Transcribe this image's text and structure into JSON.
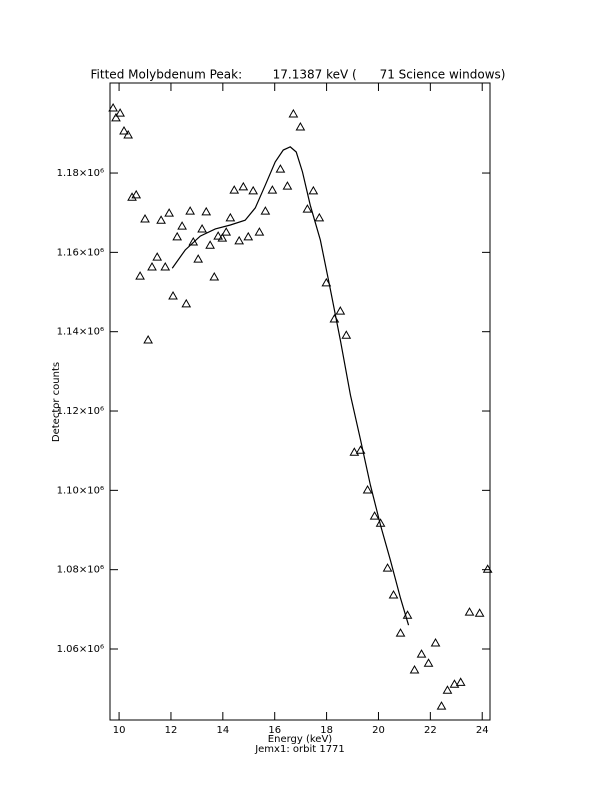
{
  "chart_data": {
    "type": "scatter",
    "title": "Fitted Molybdenum Peak:        17.1387 keV (      71 Science windows)",
    "xlabel": "Energy (keV)",
    "subtitle": "Jemx1: orbit 1771",
    "ylabel": "Detector counts",
    "color": "#000000",
    "xlim": [
      9.65,
      24.3
    ],
    "ylim": [
      1042100,
      1202700
    ],
    "xticks": [
      10,
      12,
      14,
      16,
      18,
      20,
      22,
      24
    ],
    "yticks": [
      {
        "value": 1060000,
        "label": "1.06×10⁶"
      },
      {
        "value": 1080000,
        "label": "1.08×10⁶"
      },
      {
        "value": 1100000,
        "label": "1.10×10⁶"
      },
      {
        "value": 1120000,
        "label": "1.12×10⁶"
      },
      {
        "value": 1140000,
        "label": "1.14×10⁶"
      },
      {
        "value": 1160000,
        "label": "1.16×10⁶"
      },
      {
        "value": 1180000,
        "label": "1.18×10⁶"
      }
    ],
    "series": [
      {
        "type": "scatter",
        "x": [
          9.77,
          9.88,
          10.04,
          10.19,
          10.35,
          10.5,
          10.66,
          10.81,
          11.0,
          11.12,
          11.27,
          11.47,
          11.62,
          11.78,
          11.93,
          12.08,
          12.24,
          12.43,
          12.59,
          12.74,
          12.86,
          13.05,
          13.2,
          13.36,
          13.51,
          13.67,
          13.82,
          13.98,
          14.13,
          14.29,
          14.44,
          14.63,
          14.79,
          14.98,
          15.17,
          15.41,
          15.64,
          15.91,
          16.22,
          16.49,
          16.72,
          16.99,
          17.26,
          17.49,
          17.72,
          17.99,
          18.3,
          18.53,
          18.76,
          19.07,
          19.31,
          19.58,
          19.85,
          20.08,
          20.35,
          20.58,
          20.85,
          21.12,
          21.39,
          21.66,
          21.93,
          22.2,
          22.43,
          22.66,
          22.93,
          23.17,
          23.51,
          23.9,
          24.21
        ],
        "values": [
          1196400,
          1193900,
          1195100,
          1190600,
          1189600,
          1173900,
          1174500,
          1154000,
          1168400,
          1137900,
          1156300,
          1158800,
          1168100,
          1156300,
          1169900,
          1149000,
          1163900,
          1166600,
          1147000,
          1170400,
          1162600,
          1158300,
          1165900,
          1170200,
          1161800,
          1153800,
          1164100,
          1163600,
          1165100,
          1168700,
          1175700,
          1162900,
          1176500,
          1163900,
          1175500,
          1165100,
          1170400,
          1175700,
          1181000,
          1176700,
          1194900,
          1191600,
          1170900,
          1175500,
          1168700,
          1152300,
          1143200,
          1145200,
          1139100,
          1109600,
          1110100,
          1100100,
          1093500,
          1091700,
          1080400,
          1073600,
          1064000,
          1068500,
          1054700,
          1058700,
          1056400,
          1061500,
          1045600,
          1049600,
          1051100,
          1051600,
          1069300,
          1069000,
          1080100
        ]
      },
      {
        "type": "line",
        "x": [
          12.05,
          12.55,
          13.13,
          13.71,
          14.29,
          14.86,
          15.25,
          15.64,
          16.02,
          16.33,
          16.6,
          16.83,
          17.07,
          17.37,
          17.76,
          18.15,
          18.53,
          18.92,
          19.31,
          19.69,
          20.08,
          20.46,
          20.85,
          21.16
        ],
        "values": [
          1156000,
          1160600,
          1164100,
          1165900,
          1166900,
          1168100,
          1171200,
          1177000,
          1182800,
          1185800,
          1186600,
          1185300,
          1180300,
          1171900,
          1163100,
          1150500,
          1137900,
          1124000,
          1112700,
          1101300,
          1091200,
          1082400,
          1072800,
          1066000
        ]
      }
    ]
  }
}
